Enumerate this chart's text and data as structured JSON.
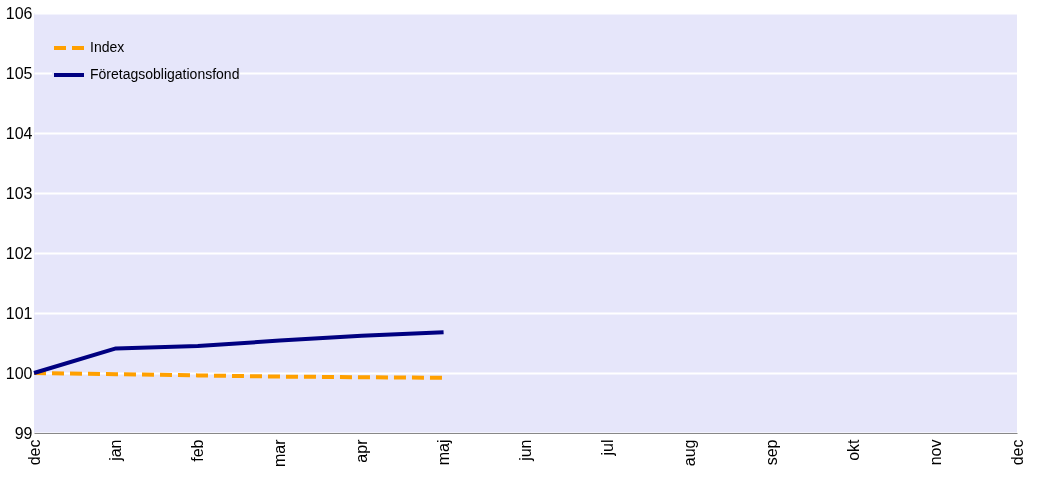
{
  "chart_data": {
    "type": "line",
    "categories": [
      "dec",
      "jan",
      "feb",
      "mar",
      "apr",
      "maj",
      "jun",
      "jul",
      "aug",
      "sep",
      "okt",
      "nov",
      "dec"
    ],
    "series": [
      {
        "name": "Index",
        "color": "#ffa000",
        "line_style": "dashed",
        "values": [
          100,
          99.98,
          99.96,
          99.94,
          99.93,
          99.92,
          null,
          null,
          null,
          null,
          null,
          null,
          null
        ]
      },
      {
        "name": "Företagsobligationsfond",
        "color": "#000080",
        "line_style": "solid",
        "values": [
          100,
          100.41,
          100.45,
          100.54,
          100.62,
          100.68,
          null,
          null,
          null,
          null,
          null,
          null,
          null
        ]
      }
    ],
    "ylim": [
      99,
      106
    ],
    "yticks": [
      99,
      100,
      101,
      102,
      103,
      104,
      105,
      106
    ],
    "grid": "y",
    "legend": "top left",
    "marker": "none"
  }
}
